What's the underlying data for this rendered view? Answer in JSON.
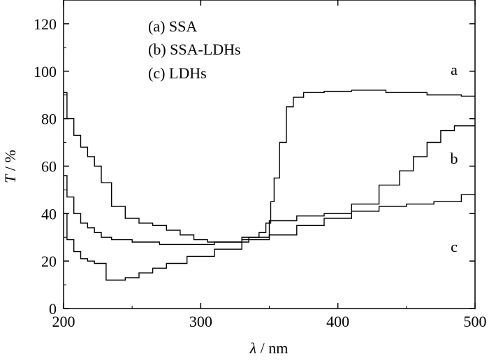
{
  "chart_data": {
    "type": "line",
    "title": "",
    "xlabel": {
      "symbol": "λ",
      "unit": " / nm"
    },
    "ylabel": {
      "symbol": "T",
      "unit": " / %"
    },
    "xlim": [
      200,
      500
    ],
    "ylim": [
      0,
      130
    ],
    "xticks": [
      200,
      300,
      400,
      500
    ],
    "yticks": [
      0,
      20,
      40,
      60,
      80,
      100,
      120
    ],
    "grid": false,
    "legend": {
      "position": "top-left",
      "entries": [
        "(a) SSA",
        "(b) SSA-LDHs",
        "(c) LDHs"
      ]
    },
    "series": [
      {
        "name": "a",
        "label": "a",
        "x": [
          200,
          205,
          210,
          215,
          220,
          225,
          230,
          240,
          250,
          260,
          270,
          280,
          290,
          300,
          310,
          320,
          330,
          340,
          345,
          350,
          352,
          355,
          360,
          365,
          370,
          380,
          400,
          420,
          450,
          480,
          500
        ],
        "y": [
          91,
          80,
          73,
          68,
          64,
          60,
          53,
          43,
          38,
          36,
          35,
          33,
          31,
          29,
          28,
          28,
          28,
          30,
          32,
          36,
          45,
          55,
          70,
          85,
          89,
          91,
          91.5,
          92,
          91,
          90,
          89.5
        ]
      },
      {
        "name": "b",
        "label": "b",
        "x": [
          200,
          205,
          210,
          215,
          220,
          225,
          230,
          240,
          260,
          280,
          300,
          320,
          340,
          360,
          380,
          400,
          420,
          440,
          450,
          460,
          470,
          480,
          490,
          500
        ],
        "y": [
          56,
          47,
          40,
          36,
          34,
          32,
          30,
          29,
          28,
          27,
          27,
          28,
          29,
          31,
          35,
          38,
          44,
          52,
          58,
          64,
          70,
          75,
          77,
          77
        ]
      },
      {
        "name": "c",
        "label": "c",
        "x": [
          200,
          205,
          210,
          215,
          220,
          225,
          230,
          232,
          240,
          250,
          260,
          270,
          280,
          300,
          320,
          340,
          360,
          380,
          400,
          420,
          440,
          460,
          480,
          500
        ],
        "y": [
          40,
          29,
          24,
          21,
          20,
          19,
          19,
          12,
          12,
          13,
          15,
          17,
          19,
          22,
          25,
          30,
          37,
          39,
          40,
          41,
          43,
          44,
          45,
          48
        ]
      }
    ]
  }
}
